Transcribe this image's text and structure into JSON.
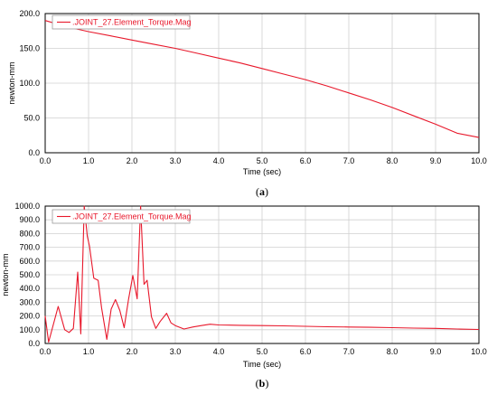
{
  "colors": {
    "series": "#e8182b",
    "grid": "#d0d0d0",
    "axis": "#000000"
  },
  "chart_data": [
    {
      "type": "line",
      "caption_open": "(",
      "caption_letter": "a",
      "caption_close": ")",
      "xlabel": "Time (sec)",
      "ylabel": "newton-mm",
      "xlim": [
        0,
        10
      ],
      "ylim": [
        0,
        200
      ],
      "xticks": [
        0,
        1,
        2,
        3,
        4,
        5,
        6,
        7,
        8,
        9,
        10
      ],
      "xtick_labels": [
        "0.0",
        "1.0",
        "2.0",
        "3.0",
        "4.0",
        "5.0",
        "6.0",
        "7.0",
        "8.0",
        "9.0",
        "10.0"
      ],
      "yticks": [
        0,
        50,
        100,
        150,
        200
      ],
      "ytick_labels": [
        "0.0",
        "50.0",
        "100.0",
        "150.0",
        "200.0"
      ],
      "grid": true,
      "legend_position": "top-left",
      "series": [
        {
          "name": ".JOINT_27.Element_Torque.Mag",
          "x": [
            0,
            0.5,
            1,
            1.5,
            2,
            2.5,
            3,
            3.5,
            4,
            4.5,
            5,
            5.5,
            6,
            6.5,
            7,
            7.5,
            8,
            8.5,
            9,
            9.5,
            10
          ],
          "y": [
            190,
            181,
            174,
            168,
            162,
            156,
            150,
            143,
            136,
            129,
            121,
            113,
            105,
            96,
            86,
            76,
            65,
            53,
            41,
            28,
            22
          ]
        }
      ]
    },
    {
      "type": "line",
      "caption_open": "(",
      "caption_letter": "b",
      "caption_close": ")",
      "xlabel": "Time (sec)",
      "ylabel": "newton-mm",
      "xlim": [
        0,
        10
      ],
      "ylim": [
        0,
        1000
      ],
      "xticks": [
        0,
        1,
        2,
        3,
        4,
        5,
        6,
        7,
        8,
        9,
        10
      ],
      "xtick_labels": [
        "0.0",
        "1.0",
        "2.0",
        "3.0",
        "4.0",
        "5.0",
        "6.0",
        "7.0",
        "8.0",
        "9.0",
        "10.0"
      ],
      "yticks": [
        0,
        100,
        200,
        300,
        400,
        500,
        600,
        700,
        800,
        900,
        1000
      ],
      "ytick_labels": [
        "0.0",
        "100.0",
        "200.0",
        "300.0",
        "400.0",
        "500.0",
        "600.0",
        "700.0",
        "800.0",
        "900.0",
        "1000.0"
      ],
      "grid": true,
      "legend_position": "top-left",
      "series": [
        {
          "name": ".JOINT_27.Element_Torque.Mag",
          "x": [
            0,
            0.08,
            0.3,
            0.45,
            0.55,
            0.65,
            0.75,
            0.82,
            0.9,
            0.97,
            1.02,
            1.12,
            1.22,
            1.3,
            1.42,
            1.52,
            1.62,
            1.72,
            1.82,
            1.92,
            2.02,
            2.12,
            2.2,
            2.28,
            2.35,
            2.45,
            2.55,
            2.65,
            2.8,
            2.9,
            3.0,
            3.2,
            3.4,
            3.6,
            3.8,
            4.0,
            4.5,
            5,
            5.5,
            6,
            6.5,
            7,
            7.5,
            8,
            8.5,
            9,
            9.5,
            10
          ],
          "y": [
            200,
            10,
            270,
            100,
            80,
            110,
            520,
            70,
            1000,
            780,
            710,
            475,
            460,
            260,
            30,
            250,
            320,
            240,
            115,
            320,
            495,
            325,
            1000,
            430,
            460,
            195,
            110,
            160,
            220,
            150,
            130,
            105,
            120,
            130,
            140,
            135,
            132,
            130,
            128,
            125,
            122,
            120,
            118,
            115,
            112,
            110,
            105,
            102
          ]
        }
      ]
    }
  ]
}
